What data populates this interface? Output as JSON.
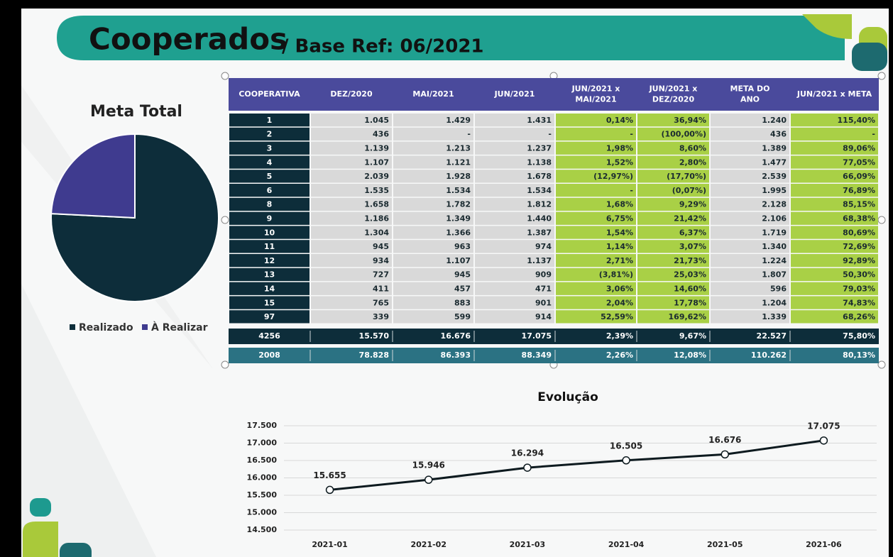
{
  "header": {
    "title": "Cooperados",
    "subtitle": "/ Base Ref: 06/2021"
  },
  "table": {
    "columns": [
      [
        "COOPERATIVA"
      ],
      [
        "DEZ/2020"
      ],
      [
        "MAI/2021"
      ],
      [
        "JUN/2021"
      ],
      [
        "JUN/2021 x",
        "MAI/2021"
      ],
      [
        "JUN/2021 x",
        "DEZ/2020"
      ],
      [
        "META DO",
        "ANO"
      ],
      [
        "JUN/2021 x META"
      ]
    ],
    "rows": [
      [
        "1",
        "1.045",
        "1.429",
        "1.431",
        "0,14%",
        "36,94%",
        "1.240",
        "115,40%"
      ],
      [
        "2",
        "436",
        "-",
        "-",
        "-",
        "(100,00%)",
        "436",
        "-"
      ],
      [
        "3",
        "1.139",
        "1.213",
        "1.237",
        "1,98%",
        "8,60%",
        "1.389",
        "89,06%"
      ],
      [
        "4",
        "1.107",
        "1.121",
        "1.138",
        "1,52%",
        "2,80%",
        "1.477",
        "77,05%"
      ],
      [
        "5",
        "2.039",
        "1.928",
        "1.678",
        "(12,97%)",
        "(17,70%)",
        "2.539",
        "66,09%"
      ],
      [
        "6",
        "1.535",
        "1.534",
        "1.534",
        "-",
        "(0,07%)",
        "1.995",
        "76,89%"
      ],
      [
        "8",
        "1.658",
        "1.782",
        "1.812",
        "1,68%",
        "9,29%",
        "2.128",
        "85,15%"
      ],
      [
        "9",
        "1.186",
        "1.349",
        "1.440",
        "6,75%",
        "21,42%",
        "2.106",
        "68,38%"
      ],
      [
        "10",
        "1.304",
        "1.366",
        "1.387",
        "1,54%",
        "6,37%",
        "1.719",
        "80,69%"
      ],
      [
        "11",
        "945",
        "963",
        "974",
        "1,14%",
        "3,07%",
        "1.340",
        "72,69%"
      ],
      [
        "12",
        "934",
        "1.107",
        "1.137",
        "2,71%",
        "21,73%",
        "1.224",
        "92,89%"
      ],
      [
        "13",
        "727",
        "945",
        "909",
        "(3,81%)",
        "25,03%",
        "1.807",
        "50,30%"
      ],
      [
        "14",
        "411",
        "457",
        "471",
        "3,06%",
        "14,60%",
        "596",
        "79,03%"
      ],
      [
        "15",
        "765",
        "883",
        "901",
        "2,04%",
        "17,78%",
        "1.204",
        "74,83%"
      ],
      [
        "97",
        "339",
        "599",
        "914",
        "52,59%",
        "169,62%",
        "1.339",
        "68,26%"
      ]
    ],
    "totals": [
      [
        "4256",
        "15.570",
        "16.676",
        "17.075",
        "2,39%",
        "9,67%",
        "22.527",
        "75,80%"
      ],
      [
        "2008",
        "78.828",
        "86.393",
        "88.349",
        "2,26%",
        "12,08%",
        "110.262",
        "80,13%"
      ]
    ]
  },
  "chart_data": [
    {
      "type": "pie",
      "title": "Meta Total",
      "categories": [
        "Realizado",
        "À Realizar"
      ],
      "values": [
        75.8,
        24.2
      ],
      "colors": [
        "#0d2d3a",
        "#3f3b8f"
      ],
      "legend": "bottom"
    },
    {
      "type": "line",
      "title": "Evolução",
      "categories": [
        "2021-01",
        "2021-02",
        "2021-03",
        "2021-04",
        "2021-05",
        "2021-06"
      ],
      "series": [
        {
          "name": "Evolução",
          "color": "#0d1a1f",
          "values": [
            15655,
            15946,
            16294,
            16505,
            16676,
            17075
          ],
          "value_labels": [
            "15.655",
            "15.946",
            "16.294",
            "16.505",
            "16.676",
            "17.075"
          ]
        }
      ],
      "ylim": [
        14500,
        17500
      ],
      "yticks": [
        {
          "value": 14500,
          "label": "14.500"
        },
        {
          "value": 15000,
          "label": "15.000"
        },
        {
          "value": 15500,
          "label": "15.500"
        },
        {
          "value": 16000,
          "label": "16.000"
        },
        {
          "value": 16500,
          "label": "16.500"
        },
        {
          "value": 17000,
          "label": "17.000"
        },
        {
          "value": 17500,
          "label": "17.500"
        }
      ],
      "grid": true
    }
  ]
}
